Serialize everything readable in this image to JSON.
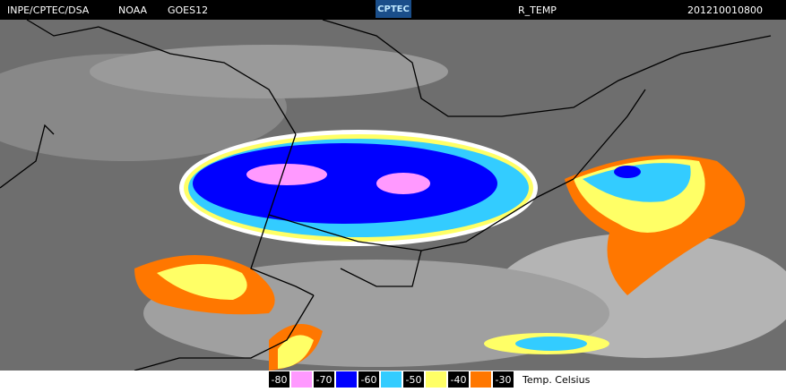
{
  "header": {
    "source": "INPE/CPTEC/DSA",
    "agency": "NOAA",
    "satellite": "GOES12",
    "logo": "CPTEC",
    "product": "R_TEMP",
    "timestamp": "201210010800"
  },
  "legend": {
    "labels": [
      "-80",
      "-70",
      "-60",
      "-50",
      "-40",
      "-30"
    ],
    "colors": [
      "#ff99ff",
      "#0000ff",
      "#33ccff",
      "#ffff66",
      "#ff7700"
    ],
    "units": "Temp. Celsius"
  }
}
